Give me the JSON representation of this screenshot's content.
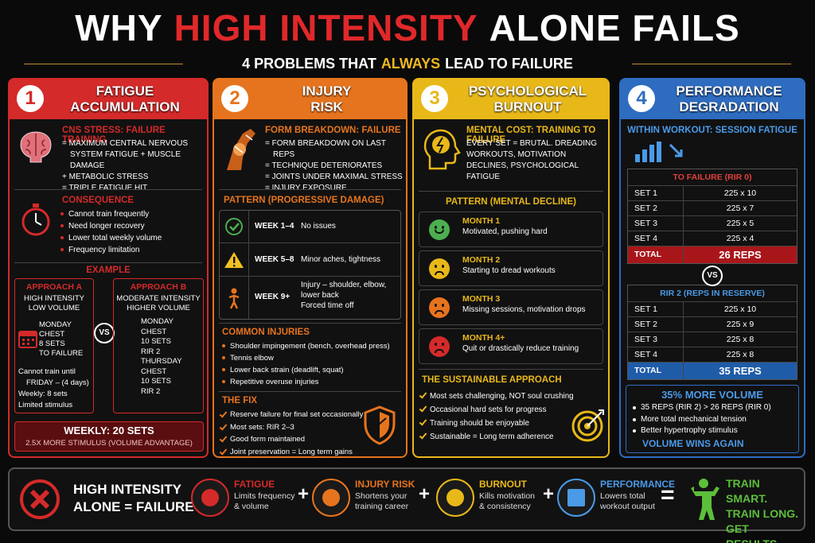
{
  "header": {
    "title": [
      "WHY",
      "HIGH INTENSITY",
      "ALONE FAILS"
    ],
    "subtitle": [
      "4 PROBLEMS THAT",
      "ALWAYS",
      "LEAD TO FAILURE"
    ]
  },
  "panels": [
    {
      "number": "1",
      "title": [
        "FATIGUE",
        "ACCUMULATION"
      ],
      "cause": {
        "heading": "CNS STRESS: FAILURE TRAINING",
        "items": [
          "= MAXIMUM CENTRAL NERVOUS SYSTEM FATIGUE + MUSCLE DAMAGE",
          "+ METABOLIC STRESS",
          "= TRIPLE FATIGUE HIT"
        ]
      },
      "consequence": {
        "heading": "CONSEQUENCE",
        "items": [
          "Cannot train frequently",
          "Need longer recovery",
          "Lower total weekly volume",
          "Frequency limitation"
        ]
      },
      "example": {
        "heading": "EXAMPLE",
        "approach_a": {
          "title": "APPROACH A",
          "subtitle": [
            "HIGH INTENSITY",
            "LOW VOLUME"
          ],
          "plan": [
            "MONDAY",
            "CHEST",
            "8 SETS",
            "TO FAILURE"
          ],
          "notes": [
            "Cannot train until FRIDAY – (4 days)",
            "Weekly: 8 sets",
            "Limited stimulus"
          ]
        },
        "vs": "VS",
        "approach_b": {
          "title": "APPROACH B",
          "subtitle": [
            "MODERATE INTENSITY",
            "HIGHER VOLUME"
          ],
          "plan": [
            "MONDAY",
            "CHEST",
            "10 SETS",
            "RIR 2",
            "THURSDAY",
            "CHEST",
            "10 SETS",
            "RIR 2"
          ]
        }
      },
      "result": {
        "heading": "WEEKLY: 20 SETS",
        "text": "2.5X MORE STIMULUS (VOLUME ADVANTAGE)"
      }
    },
    {
      "number": "2",
      "title": [
        "INJURY",
        "RISK"
      ],
      "cause": {
        "heading": "FORM BREAKDOWN: FAILURE",
        "items": [
          "= FORM BREAKDOWN ON LAST REPS",
          "= TECHNIQUE DETERIORATES",
          "= JOINTS UNDER MAXIMAL STRESS",
          "= INJURY EXPOSURE"
        ]
      },
      "pattern": {
        "heading": "PATTERN (PROGRESSIVE DAMAGE)",
        "rows": [
          {
            "label": "WEEK 1–4",
            "text": "No issues"
          },
          {
            "label": "WEEK 5–8",
            "text": "Minor aches, tightness"
          },
          {
            "label": "WEEK 9+",
            "text": "Injury – shoulder, elbow, lower back",
            "note": "Forced time off"
          }
        ]
      },
      "injuries": {
        "heading": "COMMON INJURIES",
        "items": [
          "Shoulder impingement (bench, overhead press)",
          "Tennis elbow",
          "Lower back strain (deadlift, squat)",
          "Repetitive overuse injuries"
        ]
      },
      "fix": {
        "heading": "THE FIX",
        "items": [
          "Reserve failure for final set occasionally",
          "Most sets: RIR 2–3",
          "Good form maintained",
          "Joint preservation = Long term gains"
        ]
      }
    },
    {
      "number": "3",
      "title": [
        "PSYCHOLOGICAL",
        "BURNOUT"
      ],
      "cause": {
        "heading": "MENTAL COST: TRAINING TO FAILURE",
        "text": "EVERY SET = BRUTAL. DREADING WORKOUTS, MOTIVATION DECLINES, PSYCHOLOGICAL FATIGUE"
      },
      "pattern": {
        "heading": "PATTERN (MENTAL DECLINE)",
        "rows": [
          {
            "label": "MONTH 1",
            "text": "Motivated, pushing hard"
          },
          {
            "label": "MONTH 2",
            "text": "Starting to dread workouts"
          },
          {
            "label": "MONTH 3",
            "text": "Missing sessions, motivation drops"
          },
          {
            "label": "MONTH 4+",
            "text": "Quit or drastically reduce training"
          }
        ]
      },
      "approach": {
        "heading": "THE SUSTAINABLE APPROACH",
        "items": [
          "Most sets challenging, NOT soul crushing",
          "Occasional hard sets for progress",
          "Training should be enjoyable",
          "Sustainable = Long term adherence"
        ]
      }
    },
    {
      "number": "4",
      "title": [
        "PERFORMANCE",
        "DEGRADATION"
      ],
      "cause": {
        "heading": "WITHIN WORKOUT: SESSION FATIGUE"
      },
      "tables": [
        {
          "title": "TO FAILURE (RIR 0)",
          "rows": [
            [
              "SET 1",
              "225 x 10"
            ],
            [
              "SET 2",
              "225 x 7"
            ],
            [
              "SET 3",
              "225 x 5"
            ],
            [
              "SET 4",
              "225 x 4"
            ]
          ],
          "total": [
            "TOTAL",
            "26 REPS"
          ]
        },
        {
          "title": "RIR 2 (REPS IN RESERVE)",
          "rows": [
            [
              "SET 1",
              "225 x 10"
            ],
            [
              "SET 2",
              "225 x 9"
            ],
            [
              "SET 3",
              "225 x 8"
            ],
            [
              "SET 4",
              "225 x 8"
            ]
          ],
          "total": [
            "TOTAL",
            "35 REPS"
          ]
        }
      ],
      "vs": "VS",
      "summary": {
        "heading": "35% MORE VOLUME",
        "items": [
          "35 REPS (RIR 2) > 26 REPS (RIR 0)",
          "More total mechanical tension",
          "Better hypertrophy stimulus"
        ],
        "conclusion": "VOLUME WINS AGAIN"
      }
    }
  ],
  "footer": {
    "verdict": [
      "HIGH INTENSITY",
      "ALONE = FAILURE"
    ],
    "factors": [
      {
        "name": "FATIGUE",
        "text": [
          "Limits frequency",
          "& volume"
        ]
      },
      {
        "name": "INJURY RISK",
        "text": [
          "Shortens your",
          "training career"
        ]
      },
      {
        "name": "BURNOUT",
        "text": [
          "Kills motivation",
          "& consistency"
        ]
      },
      {
        "name": "PERFORMANCE",
        "text": [
          "Lowers total",
          "workout output"
        ]
      }
    ],
    "plus": "+",
    "equals": "=",
    "result": [
      "TRAIN SMART.",
      "TRAIN LONG.",
      "GET RESULTS."
    ]
  }
}
